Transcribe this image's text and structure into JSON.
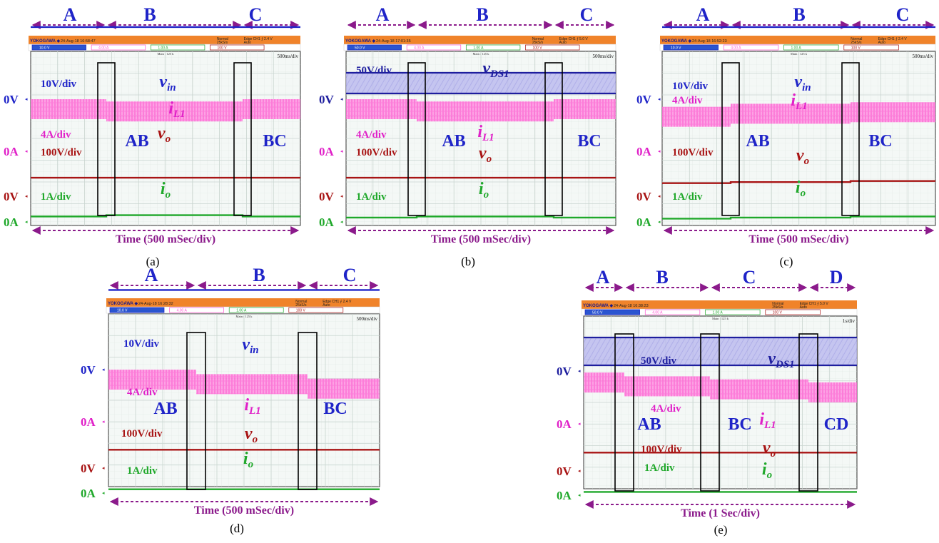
{
  "colors": {
    "vin": "#1f24c8",
    "vds": "#1e1e9e",
    "il": "#ff55d0",
    "il_text": "#e020c8",
    "vo": "#a81414",
    "io": "#1fa82a",
    "phase": "#8b1a8b",
    "header": "#f0832a",
    "grid": "#c8d4cf"
  },
  "scope_header": {
    "brand": "YOKOGAWA ◆",
    "mode": "Normal",
    "rate": "25kS/s",
    "main": "Main : 125 k",
    "ch1": "10.0 V",
    "ch1_alt": "50.0 V",
    "ch2": "4.00 A",
    "ch3": "1.00 A",
    "ch4": "100 V",
    "stopped": "Stopped"
  },
  "chart_data": [
    {
      "type": "line",
      "panel": "a",
      "caption": "(a)",
      "phases": [
        "A",
        "B",
        "C"
      ],
      "regions": [
        "AB",
        "BC"
      ],
      "time_label": "Time (500 mSec/div)",
      "timebase": "500ms/div",
      "timestamp": "24-Aug-18 16:58:47",
      "trigger": "Edge CH1 ⨍ 2.4 V",
      "trigger_mode": "Auto",
      "series": [
        {
          "name": "v_in",
          "label": "v",
          "sub": "in",
          "scale": "10V/div",
          "ref": "0V",
          "levels": [
            4.2,
            4.2,
            4.2
          ]
        },
        {
          "name": "i_L1",
          "label": "i",
          "sub": "L1",
          "scale": "4A/div",
          "ref": "0A",
          "levels": [
            2.1,
            1.95,
            2.1
          ]
        },
        {
          "name": "v_o",
          "label": "v",
          "sub": "o",
          "scale": "100V/div",
          "ref": "0V",
          "levels": [
            1.7,
            1.7,
            1.7
          ]
        },
        {
          "name": "i_o",
          "label": "i",
          "sub": "o",
          "scale": "1A/div",
          "ref": "0A",
          "levels": [
            0.5,
            0.62,
            0.5
          ]
        }
      ]
    },
    {
      "type": "line",
      "panel": "b",
      "caption": "(b)",
      "phases": [
        "A",
        "B",
        "C"
      ],
      "regions": [
        "AB",
        "BC"
      ],
      "time_label": "Time (500 mSec/div)",
      "timebase": "500ms/div",
      "timestamp": "24-Aug-18 17:01:35",
      "trigger": "Edge CH1 ⨍ 5.0 V",
      "trigger_mode": "Auto",
      "series": [
        {
          "name": "v_DS1",
          "label": "v",
          "sub": "DS1",
          "scale": "50V/div",
          "ref": "0V",
          "levels": [
            0.7,
            0.7,
            0.7
          ]
        },
        {
          "name": "i_L1",
          "label": "i",
          "sub": "L1",
          "scale": "4A/div",
          "ref": "0A",
          "levels": [
            2.1,
            1.95,
            2.1
          ]
        },
        {
          "name": "v_o",
          "label": "v",
          "sub": "o",
          "scale": "100V/div",
          "ref": "0V",
          "levels": [
            1.7,
            1.7,
            1.7
          ]
        },
        {
          "name": "i_o",
          "label": "i",
          "sub": "o",
          "scale": "1A/div",
          "ref": "0A",
          "levels": [
            0.4,
            0.5,
            0.4
          ]
        }
      ]
    },
    {
      "type": "line",
      "panel": "c",
      "caption": "(c)",
      "phases": [
        "A",
        "B",
        "C"
      ],
      "regions": [
        "AB",
        "BC"
      ],
      "time_label": "Time (500 mSec/div)",
      "timebase": "500ms/div",
      "timestamp": "24-Aug-18 16:52:23",
      "trigger": "Edge CH1 ⨍ 2.4 V",
      "trigger_mode": "Auto",
      "series": [
        {
          "name": "v_in",
          "label": "v",
          "sub": "in",
          "scale": "10V/div",
          "ref": "0V",
          "levels": [
            3.8,
            3.8,
            3.8
          ]
        },
        {
          "name": "i_L1",
          "label": "i",
          "sub": "L1",
          "scale": "4A/div",
          "ref": "0A",
          "levels": [
            1.6,
            1.8,
            1.9
          ]
        },
        {
          "name": "v_o",
          "label": "v",
          "sub": "o",
          "scale": "100V/div",
          "ref": "0V",
          "levels": [
            1.2,
            1.3,
            1.4
          ]
        },
        {
          "name": "i_o",
          "label": "i",
          "sub": "o",
          "scale": "1A/div",
          "ref": "0A",
          "levels": [
            0.3,
            0.4,
            0.5
          ]
        }
      ]
    },
    {
      "type": "line",
      "panel": "d",
      "caption": "(d)",
      "phases": [
        "A",
        "B",
        "C"
      ],
      "regions": [
        "AB",
        "BC"
      ],
      "time_label": "Time (500 mSec/div)",
      "timebase": "500ms/div",
      "timestamp": "24-Aug-18 16:28:32",
      "trigger": "Edge CH1 ⨍ 2.4 V",
      "trigger_mode": "Auto",
      "series": [
        {
          "name": "v_in",
          "label": "v",
          "sub": "in",
          "scale": "10V/div",
          "ref": "0V",
          "levels": [
            3.9,
            4.0,
            4.1
          ]
        },
        {
          "name": "i_L1",
          "label": "i",
          "sub": "L1",
          "scale": "4A/div",
          "ref": "0A",
          "levels": [
            2.1,
            1.8,
            1.5
          ]
        },
        {
          "name": "v_o",
          "label": "v",
          "sub": "o",
          "scale": "100V/div",
          "ref": "0V",
          "levels": [
            1.7,
            1.7,
            1.7
          ]
        },
        {
          "name": "i_o",
          "label": "i",
          "sub": "o",
          "scale": "1A/div",
          "ref": "0A",
          "levels": [
            0.35,
            0.35,
            0.35
          ]
        }
      ]
    },
    {
      "type": "line",
      "panel": "e",
      "caption": "(e)",
      "phases": [
        "A",
        "B",
        "C",
        "D"
      ],
      "regions": [
        "AB",
        "BC",
        "CD"
      ],
      "time_label": "Time (1 Sec/div)",
      "timebase": "1s/div",
      "timestamp": "24-Aug-18 16:38:23",
      "trigger": "Edge CH1 ⨍ 5.0 V",
      "trigger_mode": "Auto",
      "series": [
        {
          "name": "v_DS1",
          "label": "v",
          "sub": "DS1",
          "scale": "50V/div",
          "ref": "0V",
          "levels": [
            0.6,
            0.6,
            0.6,
            0.6
          ]
        },
        {
          "name": "i_L1",
          "label": "i",
          "sub": "L1",
          "scale": "4A/div",
          "ref": "0A",
          "levels": [
            2.0,
            1.75,
            1.55,
            1.35
          ]
        },
        {
          "name": "v_o",
          "label": "v",
          "sub": "o",
          "scale": "100V/div",
          "ref": "0V",
          "levels": [
            1.7,
            1.7,
            1.7,
            1.7
          ]
        },
        {
          "name": "i_o",
          "label": "i",
          "sub": "o",
          "scale": "1A/div",
          "ref": "0A",
          "levels": [
            0.3,
            0.3,
            0.3,
            0.3
          ]
        }
      ]
    }
  ]
}
